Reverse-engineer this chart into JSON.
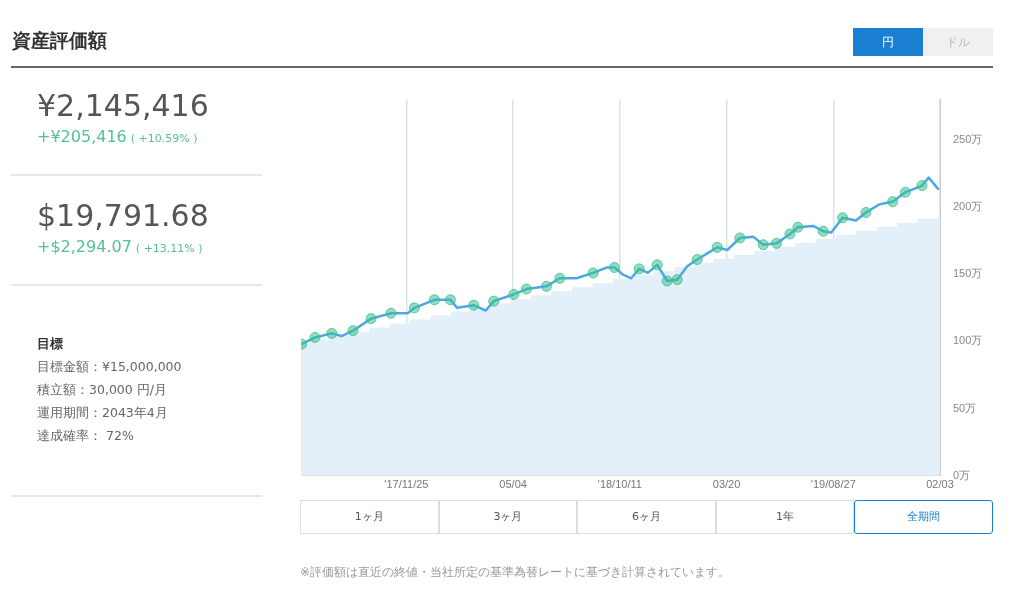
{
  "chart_data": [
    {
      "type": "other",
      "title": "資産評価額",
      "annotations": [
        "¥2,145,416",
        "+¥205,416",
        "( +10.59% )",
        "$19,791.68",
        "+$2,294.07",
        "( +13.11% )",
        "目標",
        "目標金額：¥15,000,000",
        "積立額：30,000 円/月",
        "運用期間：2043年4月",
        "達成確率： 72%"
      ]
    },
    {
      "type": "line",
      "annotations": [
        "円",
        "ドル",
        "1ヶ月",
        "3ヶ月",
        "6ヶ月",
        "1年",
        "全期間",
        "※評価額は直近の終値・当社所定の基準為替レートに基づき計算されています。"
      ],
      "xlim": [
        "2017-06-20",
        "2020-02-03"
      ],
      "xticks": [
        {
          "value": "2017-11-25",
          "label": "'17/11/25"
        },
        {
          "value": "2018-05-04",
          "label": "05/04"
        },
        {
          "value": "2018-10-11",
          "label": "'18/10/11"
        },
        {
          "value": "2019-03-20",
          "label": "03/20"
        },
        {
          "value": "2019-08-27",
          "label": "'19/08/27"
        },
        {
          "value": "2020-02-03",
          "label": "02/03"
        }
      ],
      "ylim": [
        0,
        280
      ],
      "yticks": [
        {
          "value": 0,
          "label": "0万"
        },
        {
          "value": 50,
          "label": "50万"
        },
        {
          "value": 100,
          "label": "100万"
        },
        {
          "value": 150,
          "label": "150万"
        },
        {
          "value": 200,
          "label": "200万"
        },
        {
          "value": 250,
          "label": "250万"
        }
      ],
      "grid": "x",
      "legend": false,
      "series": [
        {
          "type": "area",
          "color": "#e3f0f9",
          "x": [
            "2017-06-20",
            "2017-07-01",
            "2017-07-01",
            "2017-08-01",
            "2017-08-01",
            "2017-09-01",
            "2017-09-01",
            "2017-10-01",
            "2017-10-01",
            "2017-11-01",
            "2017-11-01",
            "2017-12-01",
            "2017-12-01",
            "2018-01-01",
            "2018-01-01",
            "2018-02-01",
            "2018-02-01",
            "2018-03-01",
            "2018-03-01",
            "2018-04-01",
            "2018-04-01",
            "2018-05-01",
            "2018-05-01",
            "2018-06-01",
            "2018-06-01",
            "2018-07-01",
            "2018-07-01",
            "2018-08-01",
            "2018-08-01",
            "2018-09-01",
            "2018-09-01",
            "2018-10-01",
            "2018-10-01",
            "2018-11-01",
            "2018-11-01",
            "2018-12-01",
            "2018-12-01",
            "2019-01-01",
            "2019-01-01",
            "2019-02-01",
            "2019-02-01",
            "2019-03-01",
            "2019-03-01",
            "2019-04-01",
            "2019-04-01",
            "2019-05-01",
            "2019-05-01",
            "2019-06-01",
            "2019-06-01",
            "2019-07-01",
            "2019-07-01",
            "2019-08-01",
            "2019-08-01",
            "2019-09-01",
            "2019-09-01",
            "2019-10-01",
            "2019-10-01",
            "2019-11-01",
            "2019-11-01",
            "2019-12-01",
            "2019-12-01",
            "2020-01-01",
            "2020-01-01",
            "2020-02-01",
            "2020-02-01",
            "2020-02-03"
          ],
          "values": [
            98,
            98,
            101,
            101,
            104,
            104,
            107,
            107,
            110,
            110,
            113,
            113,
            116,
            116,
            119,
            119,
            122,
            122,
            125,
            125,
            128,
            128,
            131,
            131,
            134,
            134,
            137,
            137,
            140,
            140,
            143,
            143,
            146,
            146,
            149,
            149,
            152,
            152,
            155,
            155,
            158,
            158,
            161,
            161,
            164,
            164,
            167,
            167,
            170,
            170,
            173,
            173,
            176,
            176,
            179,
            179,
            182,
            182,
            185,
            185,
            188,
            188,
            191,
            191,
            194,
            194
          ]
        },
        {
          "type": "line",
          "color": "#4aa8e8",
          "marker": "none",
          "x": [
            "2017-06-21",
            "2017-07-11",
            "2017-08-05",
            "2017-08-20",
            "2017-09-06",
            "2017-10-03",
            "2017-11-02",
            "2017-11-27",
            "2017-12-07",
            "2018-01-06",
            "2018-01-30",
            "2018-02-09",
            "2018-03-06",
            "2018-03-24",
            "2018-04-05",
            "2018-05-05",
            "2018-05-24",
            "2018-06-23",
            "2018-07-13",
            "2018-08-07",
            "2018-09-01",
            "2018-09-21",
            "2018-10-03",
            "2018-10-15",
            "2018-10-28",
            "2018-11-09",
            "2018-11-22",
            "2018-12-06",
            "2018-12-21",
            "2019-01-05",
            "2019-01-20",
            "2019-02-04",
            "2019-03-06",
            "2019-03-21",
            "2019-04-09",
            "2019-04-29",
            "2019-05-14",
            "2019-06-03",
            "2019-06-23",
            "2019-07-05",
            "2019-07-28",
            "2019-08-12",
            "2019-08-24",
            "2019-09-10",
            "2019-09-30",
            "2019-10-15",
            "2019-11-04",
            "2019-11-24",
            "2019-12-13",
            "2020-01-07",
            "2020-01-17",
            "2020-02-01"
          ],
          "values": [
            98,
            103,
            106,
            104,
            108,
            117,
            121,
            121,
            125,
            131,
            131,
            125,
            127,
            123,
            130,
            135,
            139,
            141,
            147,
            147,
            151,
            155,
            155,
            150,
            147,
            154,
            151,
            157,
            145,
            146,
            156,
            161,
            170,
            168,
            177,
            178,
            172,
            173,
            180,
            185,
            186,
            182,
            181,
            192,
            190,
            196,
            202,
            204,
            211,
            216,
            222,
            213
          ]
        },
        {
          "type": "scatter",
          "color": "#3dbf8c",
          "marker": "circle",
          "x": [
            "2017-06-21",
            "2017-07-11",
            "2017-08-05",
            "2017-09-06",
            "2017-10-03",
            "2017-11-02",
            "2017-12-07",
            "2018-01-06",
            "2018-01-30",
            "2018-03-06",
            "2018-04-05",
            "2018-05-05",
            "2018-05-24",
            "2018-06-23",
            "2018-07-13",
            "2018-09-01",
            "2018-10-03",
            "2018-11-09",
            "2018-12-06",
            "2018-12-21",
            "2019-01-05",
            "2019-02-04",
            "2019-03-06",
            "2019-04-09",
            "2019-05-14",
            "2019-06-03",
            "2019-06-23",
            "2019-07-05",
            "2019-08-12",
            "2019-09-10",
            "2019-10-15",
            "2019-11-24",
            "2019-12-13",
            "2020-01-07"
          ],
          "values": [
            98,
            103,
            106,
            108,
            117,
            121,
            125,
            131,
            131,
            127,
            130,
            135,
            139,
            141,
            147,
            151,
            155,
            154,
            157,
            145,
            146,
            161,
            170,
            177,
            172,
            173,
            180,
            185,
            182,
            192,
            196,
            204,
            211,
            216
          ]
        }
      ]
    }
  ]
}
